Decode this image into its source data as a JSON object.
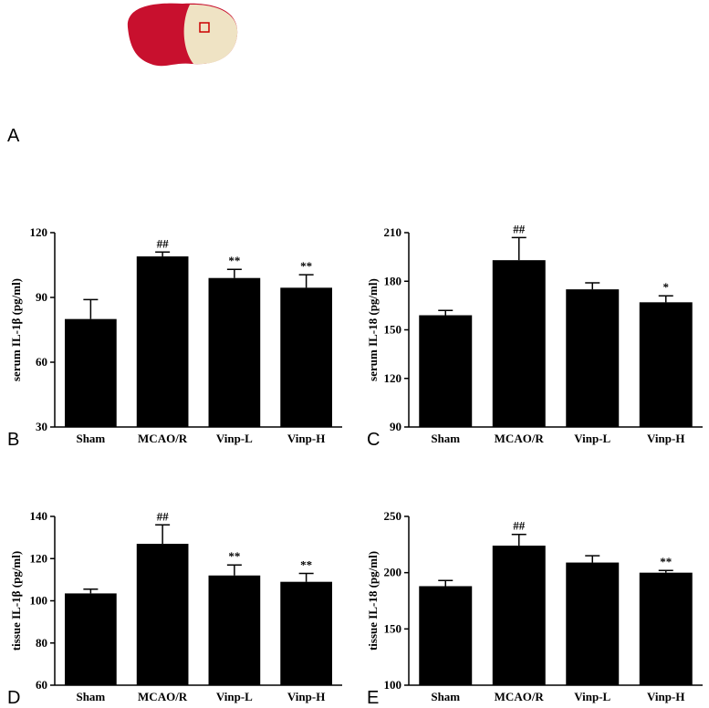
{
  "image_panel": {
    "label": "A"
  },
  "chart_data": [
    {
      "type": "bar",
      "panel_label": "B",
      "ylabel": "serum IL-1β (pg/ml)",
      "color": "#000000",
      "categories": [
        "Sham",
        "MCAO/R",
        "Vinp-L",
        "Vinp-H"
      ],
      "values": [
        80,
        109,
        99,
        94.5
      ],
      "errors": [
        9,
        2,
        4,
        6
      ],
      "annotations": [
        null,
        "##",
        "**",
        "**"
      ],
      "ylim": [
        30,
        120
      ],
      "yticks": [
        30,
        60,
        90,
        120
      ]
    },
    {
      "type": "bar",
      "panel_label": "C",
      "ylabel": "serum IL-18 (pg/ml)",
      "color": "#000000",
      "categories": [
        "Sham",
        "MCAO/R",
        "Vinp-L",
        "Vinp-H"
      ],
      "values": [
        159,
        193,
        175,
        167
      ],
      "errors": [
        3,
        14,
        4,
        4
      ],
      "annotations": [
        null,
        "##",
        null,
        "*"
      ],
      "ylim": [
        90,
        210
      ],
      "yticks": [
        90,
        120,
        150,
        180,
        210
      ]
    },
    {
      "type": "bar",
      "panel_label": "D",
      "ylabel": "tissue  IL-1β (pg/ml)",
      "color": "#000000",
      "categories": [
        "Sham",
        "MCAO/R",
        "Vinp-L",
        "Vinp-H"
      ],
      "values": [
        103.5,
        127,
        112,
        109
      ],
      "errors": [
        2,
        9,
        5,
        4
      ],
      "annotations": [
        null,
        "##",
        "**",
        "**"
      ],
      "ylim": [
        60,
        140
      ],
      "yticks": [
        60,
        80,
        100,
        120,
        140
      ]
    },
    {
      "type": "bar",
      "panel_label": "E",
      "ylabel": "tissue IL-18 (pg/ml)",
      "color": "#000000",
      "categories": [
        "Sham",
        "MCAO/R",
        "Vinp-L",
        "Vinp-H"
      ],
      "values": [
        188,
        224,
        209,
        200
      ],
      "errors": [
        5,
        10,
        6,
        2
      ],
      "annotations": [
        null,
        "##",
        null,
        "**"
      ],
      "ylim": [
        100,
        250
      ],
      "yticks": [
        100,
        150,
        200,
        250
      ]
    }
  ]
}
